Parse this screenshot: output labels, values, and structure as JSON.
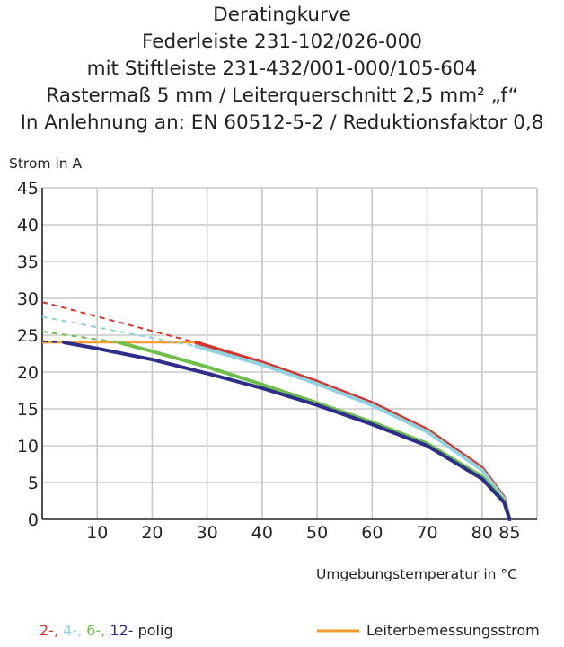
{
  "chart_data": {
    "type": "line",
    "title_lines": [
      "Deratingkurve",
      "Federleiste 231-102/026-000",
      "mit Stiftleiste 231-432/001-000/105-604",
      "Rastermaß 5 mm / Leiterquerschnitt 2,5 mm² „f“",
      "In Anlehnung an: EN 60512-5-2 / Reduktionsfaktor 0,8"
    ],
    "ylabel": "Strom in A",
    "xlabel": "Umgebungstemperatur in °C",
    "xlim": [
      0,
      90
    ],
    "ylim": [
      0,
      45
    ],
    "x_ticks": [
      "10",
      "20",
      "30",
      "40",
      "50",
      "60",
      "70",
      "80",
      "85"
    ],
    "x_tick_values": [
      10,
      20,
      30,
      40,
      50,
      60,
      70,
      80,
      85
    ],
    "y_ticks": [
      "0",
      "5",
      "10",
      "15",
      "20",
      "25",
      "30",
      "35",
      "40",
      "45"
    ],
    "y_tick_values": [
      0,
      5,
      10,
      15,
      20,
      25,
      30,
      35,
      40,
      45
    ],
    "grid": true,
    "series": [
      {
        "name": "2-polig",
        "color": "#d9342b",
        "dashed": {
          "x": [
            0,
            28
          ],
          "y": [
            29.5,
            24
          ]
        },
        "x": [
          28,
          40,
          50,
          60,
          70,
          80,
          84,
          85
        ],
        "y": [
          24,
          21.3,
          18.7,
          15.8,
          12.2,
          7,
          3,
          0
        ]
      },
      {
        "name": "4-polig",
        "color": "#8fd3e0",
        "dashed": {
          "x": [
            0,
            28
          ],
          "y": [
            27.5,
            23.5
          ]
        },
        "x": [
          28,
          40,
          50,
          60,
          70,
          80,
          84,
          85
        ],
        "y": [
          23.5,
          21,
          18.4,
          15.5,
          11.9,
          6.7,
          2.8,
          0
        ]
      },
      {
        "name": "6-polig",
        "color": "#6cc04a",
        "dashed": {
          "x": [
            0,
            14
          ],
          "y": [
            25.5,
            24
          ]
        },
        "x": [
          14,
          20,
          30,
          40,
          50,
          60,
          70,
          80,
          84,
          85
        ],
        "y": [
          24,
          22.8,
          20.7,
          18.3,
          15.8,
          13.2,
          10.3,
          5.8,
          2.5,
          0
        ]
      },
      {
        "name": "12-polig",
        "color": "#2e2d8b",
        "dashed": {
          "x": [
            0,
            4
          ],
          "y": [
            24.2,
            24
          ]
        },
        "x": [
          4,
          10,
          20,
          30,
          40,
          50,
          60,
          70,
          80,
          84,
          85
        ],
        "y": [
          24,
          23.2,
          21.7,
          19.8,
          17.8,
          15.5,
          12.9,
          10,
          5.5,
          2.3,
          0
        ]
      }
    ],
    "reference_line": {
      "name": "Leiterbemessungsstrom",
      "color": "#f39a2e",
      "x": [
        0,
        29
      ],
      "y": [
        24,
        24
      ]
    },
    "legend": {
      "parts": [
        {
          "text": "2-,",
          "color": "#d9342b"
        },
        {
          "text": "4-,",
          "color": "#8fd3e0"
        },
        {
          "text": "6-,",
          "color": "#6cc04a"
        },
        {
          "text": "12-",
          "color": "#2e2d8b"
        },
        {
          "text": "polig",
          "color": "#222222"
        }
      ],
      "reference_label": "Leiterbemessungsstrom"
    }
  }
}
